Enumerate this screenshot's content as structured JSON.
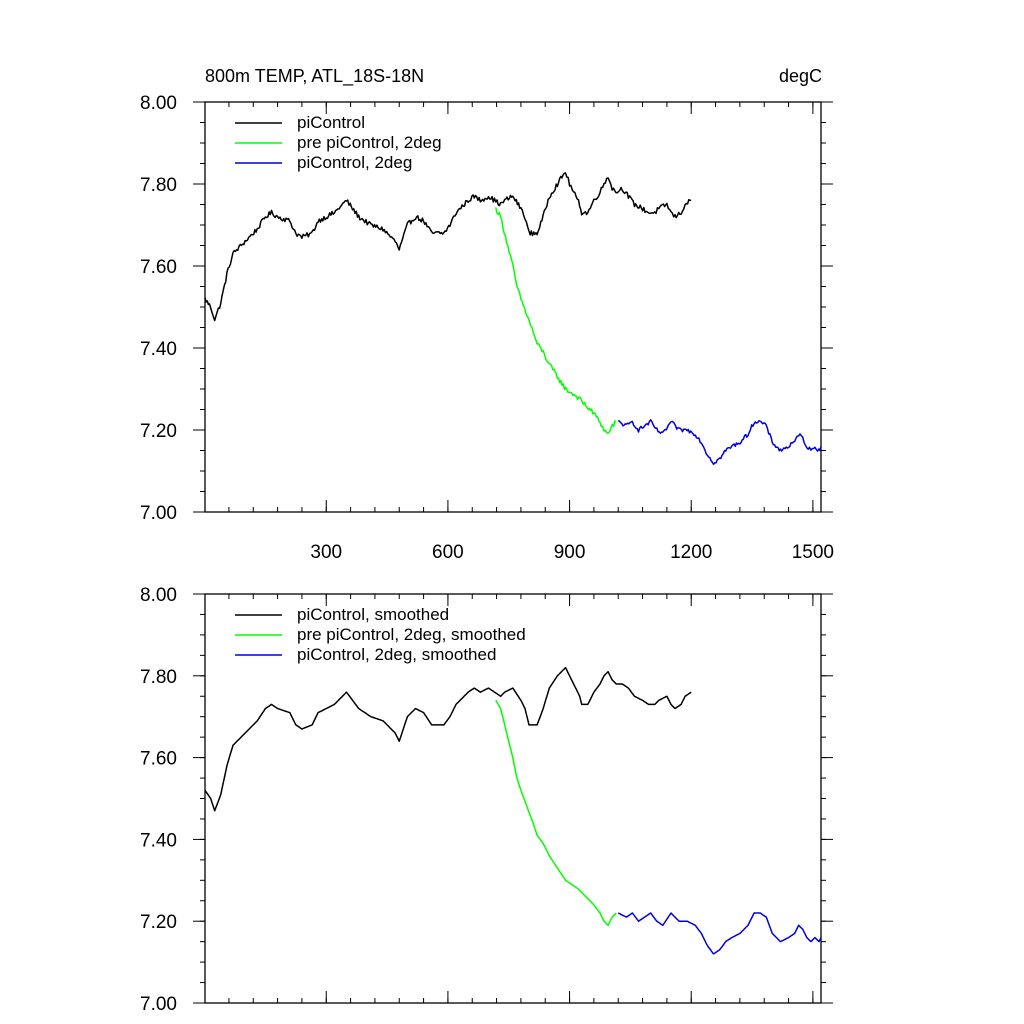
{
  "chart_data": [
    {
      "type": "line",
      "title": "800m TEMP, ATL_18S-18N",
      "units": "degC",
      "xlabel": "",
      "ylabel": "",
      "xlim": [
        1,
        1520
      ],
      "ylim": [
        7.0,
        8.0
      ],
      "x_ticks": [
        300,
        600,
        900,
        1200,
        1500
      ],
      "x_tick_labels": [
        "300",
        "600",
        "900",
        "1200",
        "1500"
      ],
      "y_ticks": [
        7.0,
        7.2,
        7.4,
        7.6,
        7.8,
        8.0
      ],
      "y_tick_labels": [
        "7.00",
        "7.20",
        "7.40",
        "7.60",
        "7.80",
        "8.00"
      ],
      "y_minor_step": 0.05,
      "x_minor_step": 60,
      "legend_position": "top-left",
      "series": [
        {
          "name": "piControl",
          "color": "#000000",
          "noise": 0.006,
          "x": [
            1,
            15,
            25,
            40,
            55,
            70,
            100,
            130,
            150,
            165,
            180,
            210,
            225,
            240,
            265,
            280,
            300,
            320,
            350,
            365,
            380,
            410,
            440,
            470,
            480,
            500,
            520,
            540,
            560,
            590,
            605,
            620,
            650,
            665,
            680,
            700,
            715,
            730,
            740,
            760,
            780,
            790,
            800,
            820,
            835,
            850,
            870,
            890,
            900,
            910,
            925,
            930,
            945,
            960,
            975,
            985,
            995,
            1005,
            1015,
            1030,
            1045,
            1060,
            1080,
            1095,
            1110,
            1120,
            1140,
            1150,
            1160,
            1175,
            1185,
            1200
          ],
          "values": [
            7.52,
            7.5,
            7.47,
            7.51,
            7.58,
            7.63,
            7.66,
            7.69,
            7.72,
            7.73,
            7.72,
            7.71,
            7.68,
            7.67,
            7.68,
            7.71,
            7.72,
            7.73,
            7.76,
            7.74,
            7.72,
            7.7,
            7.69,
            7.66,
            7.64,
            7.7,
            7.72,
            7.71,
            7.68,
            7.68,
            7.7,
            7.73,
            7.76,
            7.77,
            7.76,
            7.77,
            7.76,
            7.75,
            7.76,
            7.77,
            7.74,
            7.72,
            7.68,
            7.68,
            7.72,
            7.77,
            7.8,
            7.83,
            7.8,
            7.78,
            7.75,
            7.73,
            7.73,
            7.76,
            7.78,
            7.8,
            7.82,
            7.79,
            7.78,
            7.79,
            7.77,
            7.75,
            7.74,
            7.73,
            7.73,
            7.74,
            7.75,
            7.73,
            7.72,
            7.73,
            7.75,
            7.76
          ]
        },
        {
          "name": "pre piControl, 2deg",
          "color": "#00ff00",
          "noise": 0.006,
          "x": [
            718,
            730,
            745,
            760,
            770,
            780,
            795,
            810,
            820,
            835,
            850,
            870,
            890,
            905,
            920,
            940,
            960,
            975,
            985,
            995,
            1005,
            1015
          ],
          "values": [
            7.74,
            7.72,
            7.66,
            7.6,
            7.55,
            7.52,
            7.48,
            7.44,
            7.41,
            7.39,
            7.36,
            7.33,
            7.3,
            7.29,
            7.28,
            7.26,
            7.24,
            7.22,
            7.2,
            7.19,
            7.21,
            7.22
          ]
        },
        {
          "name": "piControl, 2deg",
          "color": "#0000dd",
          "noise": 0.005,
          "x": [
            1020,
            1040,
            1055,
            1070,
            1085,
            1100,
            1115,
            1130,
            1150,
            1170,
            1190,
            1210,
            1225,
            1240,
            1255,
            1270,
            1285,
            1300,
            1320,
            1340,
            1355,
            1370,
            1385,
            1400,
            1420,
            1440,
            1455,
            1465,
            1475,
            1485,
            1495,
            1505,
            1515,
            1520
          ],
          "values": [
            7.22,
            7.21,
            7.22,
            7.2,
            7.21,
            7.22,
            7.2,
            7.19,
            7.22,
            7.2,
            7.2,
            7.19,
            7.17,
            7.14,
            7.12,
            7.13,
            7.15,
            7.16,
            7.17,
            7.19,
            7.22,
            7.22,
            7.21,
            7.17,
            7.15,
            7.16,
            7.17,
            7.19,
            7.18,
            7.16,
            7.15,
            7.16,
            7.15,
            7.16
          ]
        }
      ]
    },
    {
      "type": "line",
      "title": "",
      "xlabel": "",
      "ylabel": "",
      "xlim": [
        1,
        1520
      ],
      "ylim": [
        7.0,
        8.0
      ],
      "x_ticks": [
        300,
        600,
        900,
        1200,
        1500
      ],
      "x_tick_labels": [],
      "y_ticks": [
        7.0,
        7.2,
        7.4,
        7.6,
        7.8,
        8.0
      ],
      "y_tick_labels": [
        "7.00",
        "7.20",
        "7.40",
        "7.60",
        "7.80",
        "8.00"
      ],
      "y_minor_step": 0.05,
      "x_minor_step": 60,
      "legend_position": "top-left",
      "series": [
        {
          "name": "piControl, smoothed",
          "color": "#000000",
          "noise": 0,
          "x": [
            1,
            15,
            25,
            40,
            55,
            70,
            100,
            130,
            150,
            165,
            180,
            210,
            225,
            240,
            265,
            280,
            300,
            320,
            350,
            365,
            380,
            410,
            440,
            470,
            480,
            500,
            520,
            540,
            560,
            590,
            605,
            620,
            650,
            665,
            680,
            700,
            715,
            730,
            740,
            760,
            780,
            790,
            800,
            820,
            835,
            850,
            870,
            890,
            900,
            910,
            925,
            930,
            945,
            960,
            975,
            985,
            995,
            1005,
            1015,
            1030,
            1045,
            1060,
            1080,
            1095,
            1110,
            1120,
            1140,
            1150,
            1160,
            1175,
            1185,
            1200
          ],
          "values": [
            7.52,
            7.5,
            7.47,
            7.51,
            7.58,
            7.63,
            7.66,
            7.69,
            7.72,
            7.73,
            7.72,
            7.71,
            7.68,
            7.67,
            7.68,
            7.71,
            7.72,
            7.73,
            7.76,
            7.74,
            7.72,
            7.7,
            7.69,
            7.66,
            7.64,
            7.7,
            7.72,
            7.71,
            7.68,
            7.68,
            7.7,
            7.73,
            7.76,
            7.77,
            7.76,
            7.77,
            7.76,
            7.75,
            7.76,
            7.77,
            7.74,
            7.72,
            7.68,
            7.68,
            7.72,
            7.77,
            7.8,
            7.82,
            7.8,
            7.78,
            7.75,
            7.73,
            7.73,
            7.76,
            7.78,
            7.8,
            7.81,
            7.79,
            7.78,
            7.78,
            7.77,
            7.75,
            7.74,
            7.73,
            7.73,
            7.74,
            7.75,
            7.73,
            7.72,
            7.73,
            7.75,
            7.76
          ]
        },
        {
          "name": "pre piControl, 2deg, smoothed",
          "color": "#00ff00",
          "noise": 0,
          "x": [
            718,
            730,
            745,
            760,
            770,
            780,
            795,
            810,
            820,
            835,
            850,
            870,
            890,
            905,
            920,
            940,
            960,
            975,
            985,
            995,
            1005,
            1015
          ],
          "values": [
            7.74,
            7.72,
            7.66,
            7.6,
            7.55,
            7.52,
            7.48,
            7.44,
            7.41,
            7.39,
            7.36,
            7.33,
            7.3,
            7.29,
            7.28,
            7.26,
            7.24,
            7.22,
            7.2,
            7.19,
            7.21,
            7.22
          ]
        },
        {
          "name": "piControl, 2deg, smoothed",
          "color": "#0000dd",
          "noise": 0,
          "x": [
            1020,
            1040,
            1055,
            1070,
            1085,
            1100,
            1115,
            1130,
            1150,
            1170,
            1190,
            1210,
            1225,
            1240,
            1255,
            1270,
            1285,
            1300,
            1320,
            1340,
            1355,
            1370,
            1385,
            1400,
            1420,
            1440,
            1455,
            1465,
            1475,
            1485,
            1495,
            1505,
            1515,
            1520
          ],
          "values": [
            7.22,
            7.21,
            7.22,
            7.2,
            7.21,
            7.22,
            7.2,
            7.19,
            7.22,
            7.2,
            7.2,
            7.19,
            7.17,
            7.14,
            7.12,
            7.13,
            7.15,
            7.16,
            7.17,
            7.19,
            7.22,
            7.22,
            7.21,
            7.17,
            7.15,
            7.16,
            7.17,
            7.19,
            7.18,
            7.16,
            7.15,
            7.16,
            7.15,
            7.16
          ]
        }
      ]
    }
  ]
}
